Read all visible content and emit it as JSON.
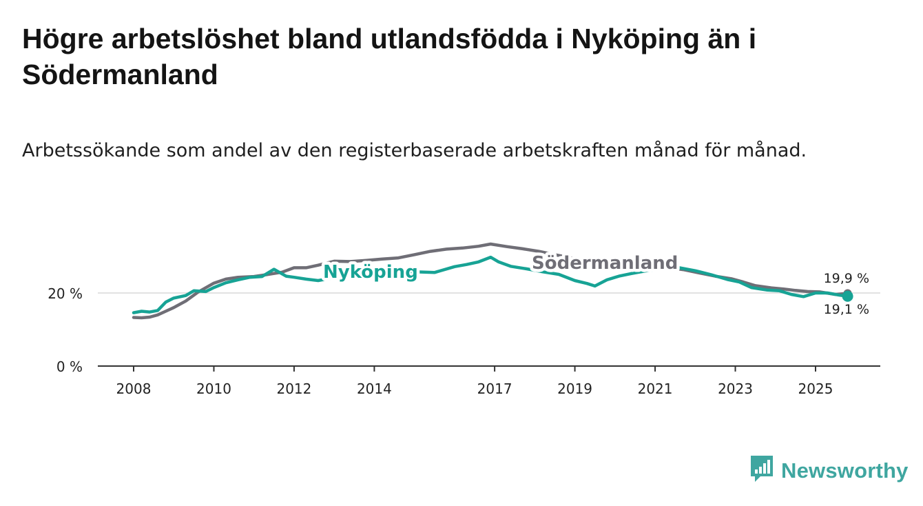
{
  "title": "Högre arbetslöshet bland utlandsfödda i Nyköping än i Södermanland",
  "subtitle": "Arbetssökande som andel av den registerbaserade arbetskraften månad för månad.",
  "brand": {
    "name": "Newsworthy",
    "color": "#3fa6a0"
  },
  "colors": {
    "nykoping": "#17a395",
    "sodermanland": "#6f6e76",
    "axis": "#333333",
    "grid": "#d9d9d9"
  },
  "chart_data": {
    "type": "line",
    "title": "Högre arbetslöshet bland utlandsfödda i Nyköping än i Södermanland",
    "xlabel": "",
    "ylabel": "",
    "ylim": [
      0,
      40
    ],
    "xlim": [
      2007.7,
      2026.4
    ],
    "y_ticks": [
      {
        "value": 0,
        "label": "0 %"
      },
      {
        "value": 20,
        "label": "20 %"
      }
    ],
    "x_ticks": [
      {
        "value": 2008,
        "label": "2008"
      },
      {
        "value": 2010,
        "label": "2010"
      },
      {
        "value": 2012,
        "label": "2012"
      },
      {
        "value": 2014,
        "label": "2014"
      },
      {
        "value": 2017,
        "label": "2017"
      },
      {
        "value": 2019,
        "label": "2019"
      },
      {
        "value": 2021,
        "label": "2021"
      },
      {
        "value": 2023,
        "label": "2023"
      },
      {
        "value": 2025,
        "label": "2025"
      }
    ],
    "series": [
      {
        "name": "Nyköping",
        "key": "nykoping",
        "label_text": "Nyköping",
        "end_label": "19,1 %",
        "points": [
          [
            2008.0,
            14.6
          ],
          [
            2008.2,
            15.0
          ],
          [
            2008.4,
            14.8
          ],
          [
            2008.6,
            15.2
          ],
          [
            2008.8,
            17.5
          ],
          [
            2009.0,
            18.6
          ],
          [
            2009.3,
            19.3
          ],
          [
            2009.5,
            20.6
          ],
          [
            2009.8,
            20.4
          ],
          [
            2010.0,
            21.5
          ],
          [
            2010.3,
            22.8
          ],
          [
            2010.6,
            23.6
          ],
          [
            2010.9,
            24.3
          ],
          [
            2011.2,
            24.5
          ],
          [
            2011.5,
            26.5
          ],
          [
            2011.8,
            24.6
          ],
          [
            2012.0,
            24.3
          ],
          [
            2012.3,
            23.8
          ],
          [
            2012.6,
            23.4
          ],
          [
            2013.0,
            24.2
          ],
          [
            2013.3,
            25.0
          ],
          [
            2013.6,
            25.8
          ],
          [
            2014.0,
            26.6
          ],
          [
            2014.5,
            26.3
          ],
          [
            2015.0,
            25.8
          ],
          [
            2015.5,
            25.6
          ],
          [
            2016.0,
            27.2
          ],
          [
            2016.3,
            27.8
          ],
          [
            2016.6,
            28.5
          ],
          [
            2016.9,
            29.8
          ],
          [
            2017.1,
            28.5
          ],
          [
            2017.4,
            27.3
          ],
          [
            2017.8,
            26.6
          ],
          [
            2018.2,
            25.8
          ],
          [
            2018.6,
            25.1
          ],
          [
            2019.0,
            23.4
          ],
          [
            2019.3,
            22.6
          ],
          [
            2019.5,
            21.9
          ],
          [
            2019.8,
            23.6
          ],
          [
            2020.1,
            24.6
          ],
          [
            2020.4,
            25.3
          ],
          [
            2020.8,
            26.1
          ],
          [
            2021.2,
            26.6
          ],
          [
            2021.6,
            26.9
          ],
          [
            2022.0,
            26.1
          ],
          [
            2022.4,
            25.0
          ],
          [
            2022.8,
            23.7
          ],
          [
            2023.1,
            23.0
          ],
          [
            2023.4,
            21.5
          ],
          [
            2023.8,
            20.8
          ],
          [
            2024.1,
            20.6
          ],
          [
            2024.4,
            19.6
          ],
          [
            2024.7,
            19.0
          ],
          [
            2025.0,
            20.0
          ],
          [
            2025.3,
            20.0
          ],
          [
            2025.6,
            19.4
          ],
          [
            2025.8,
            19.1
          ]
        ]
      },
      {
        "name": "Södermanland",
        "key": "sodermanland",
        "label_text": "Södermanland",
        "end_label": "19,9 %",
        "points": [
          [
            2008.0,
            13.3
          ],
          [
            2008.2,
            13.2
          ],
          [
            2008.4,
            13.4
          ],
          [
            2008.6,
            14.0
          ],
          [
            2008.8,
            15.0
          ],
          [
            2009.0,
            16.0
          ],
          [
            2009.3,
            17.8
          ],
          [
            2009.6,
            20.2
          ],
          [
            2010.0,
            22.7
          ],
          [
            2010.3,
            23.8
          ],
          [
            2010.6,
            24.3
          ],
          [
            2011.0,
            24.5
          ],
          [
            2011.3,
            25.0
          ],
          [
            2011.7,
            25.7
          ],
          [
            2012.0,
            26.9
          ],
          [
            2012.3,
            26.9
          ],
          [
            2012.6,
            27.6
          ],
          [
            2013.0,
            28.7
          ],
          [
            2013.4,
            28.6
          ],
          [
            2013.8,
            28.9
          ],
          [
            2014.2,
            29.3
          ],
          [
            2014.6,
            29.6
          ],
          [
            2015.0,
            30.5
          ],
          [
            2015.4,
            31.4
          ],
          [
            2015.8,
            32.0
          ],
          [
            2016.2,
            32.3
          ],
          [
            2016.6,
            32.8
          ],
          [
            2016.9,
            33.4
          ],
          [
            2017.3,
            32.7
          ],
          [
            2017.7,
            32.1
          ],
          [
            2018.1,
            31.4
          ],
          [
            2018.5,
            30.5
          ],
          [
            2018.9,
            29.6
          ],
          [
            2019.3,
            29.0
          ],
          [
            2019.7,
            28.7
          ],
          [
            2020.1,
            28.5
          ],
          [
            2020.5,
            28.0
          ],
          [
            2020.9,
            27.5
          ],
          [
            2021.3,
            27.0
          ],
          [
            2021.7,
            26.4
          ],
          [
            2022.1,
            25.5
          ],
          [
            2022.5,
            24.6
          ],
          [
            2022.9,
            23.9
          ],
          [
            2023.2,
            23.0
          ],
          [
            2023.5,
            22.0
          ],
          [
            2023.9,
            21.4
          ],
          [
            2024.2,
            21.1
          ],
          [
            2024.5,
            20.7
          ],
          [
            2024.8,
            20.4
          ],
          [
            2025.1,
            20.3
          ],
          [
            2025.5,
            19.6
          ],
          [
            2025.8,
            19.9
          ]
        ]
      }
    ]
  }
}
